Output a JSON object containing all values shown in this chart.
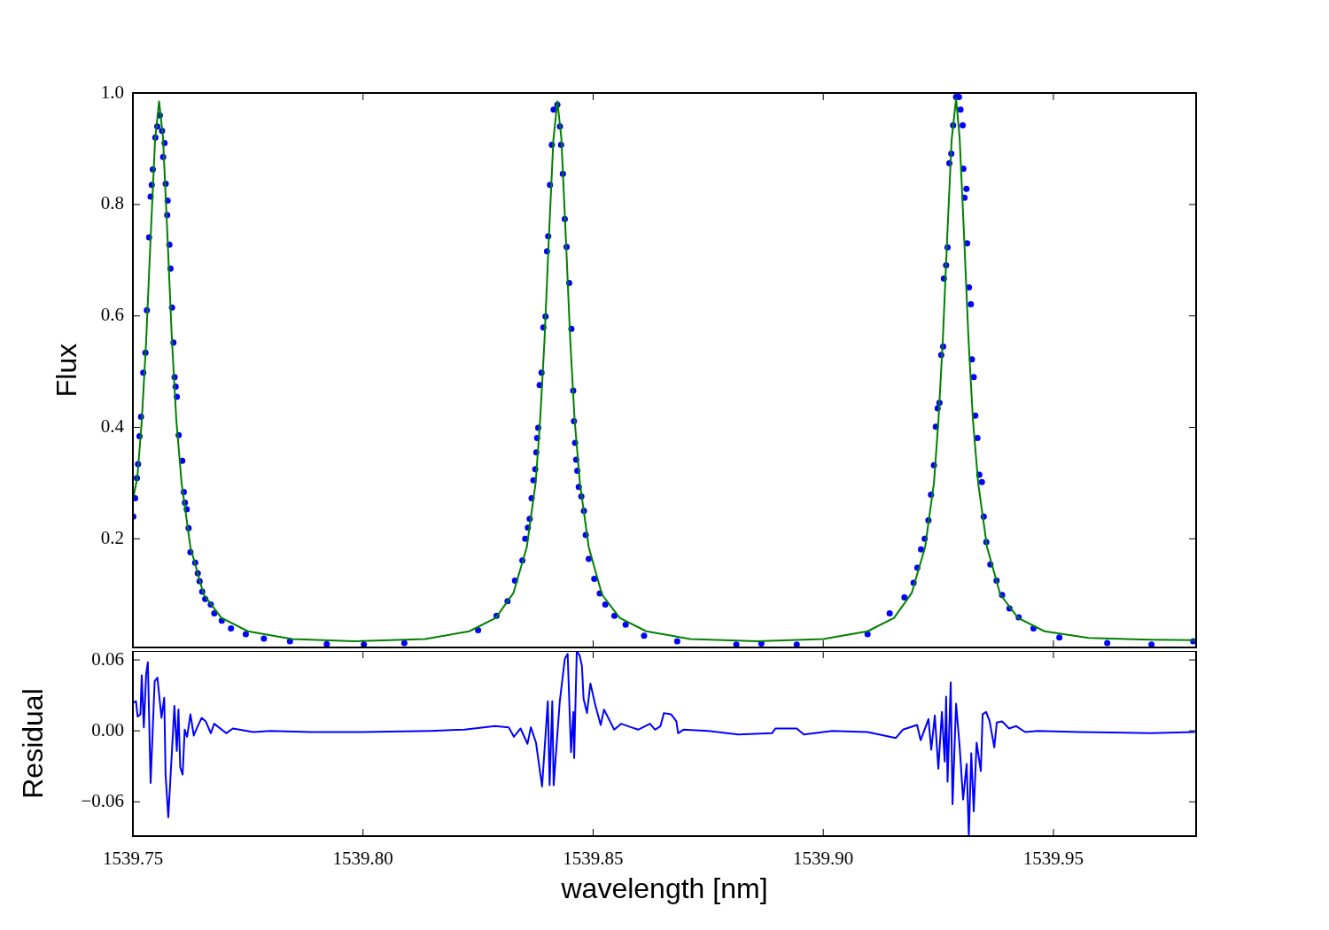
{
  "chart_data": [
    {
      "type": "scatter",
      "ylabel": "Flux",
      "xlim": [
        1539.75,
        1539.981
      ],
      "ylim": [
        0.005,
        1.0
      ],
      "xticks": [
        1539.75,
        1539.8,
        1539.85,
        1539.9,
        1539.95
      ],
      "yticks": [
        0.2,
        0.4,
        0.6,
        0.8,
        {
          "value": 1,
          "label": "1.0"
        }
      ],
      "tick_labels": "y",
      "series": [
        {
          "type": "scatter",
          "color": "#0000ff",
          "marker": "circle",
          "x": [
            1539.75008,
            1539.75048,
            1539.75088,
            1539.75112,
            1539.75144,
            1539.75177,
            1539.75225,
            1539.75273,
            1539.75304,
            1539.75352,
            1539.75385,
            1539.7541,
            1539.75433,
            1539.75488,
            1539.75529,
            1539.75585,
            1539.75633,
            1539.75658,
            1539.75688,
            1539.75713,
            1539.75745,
            1539.75754,
            1539.75793,
            1539.75817,
            1539.7585,
            1539.75881,
            1539.75906,
            1539.75929,
            1539.75954,
            1539.75994,
            1539.76073,
            1539.76106,
            1539.7613,
            1539.76169,
            1539.7621,
            1539.7625,
            1539.76354,
            1539.7641,
            1539.7645,
            1539.76506,
            1539.76571,
            1539.76692,
            1539.76769,
            1539.76931,
            1539.77131,
            1539.77452,
            1539.77846,
            1539.78413,
            1539.79212,
            1539.80019,
            1539.80898,
            1539.825,
            1539.829,
            1539.8314,
            1539.83302,
            1539.83462,
            1539.83525,
            1539.83582,
            1539.83621,
            1539.83662,
            1539.83702,
            1539.83742,
            1539.83765,
            1539.83783,
            1539.83806,
            1539.83838,
            1539.83879,
            1539.83918,
            1539.83966,
            1539.83998,
            1539.84023,
            1539.84063,
            1539.84102,
            1539.84142,
            1539.84223,
            1539.84279,
            1539.84303,
            1539.84342,
            1539.84383,
            1539.84423,
            1539.84479,
            1539.84527,
            1539.84567,
            1539.84583,
            1539.84608,
            1539.84631,
            1539.84656,
            1539.84688,
            1539.84744,
            1539.848,
            1539.8484,
            1539.84904,
            1539.85024,
            1539.85144,
            1539.85264,
            1539.85462,
            1539.85706,
            1539.86106,
            1539.86827,
            1539.8811,
            1539.88654,
            1539.89423,
            1539.90962,
            1539.91442,
            1539.91763,
            1539.91962,
            1539.92043,
            1539.92123,
            1539.92204,
            1539.92284,
            1539.9234,
            1539.92404,
            1539.92444,
            1539.92485,
            1539.92524,
            1539.92563,
            1539.92604,
            1539.9262,
            1539.92668,
            1539.927,
            1539.9274,
            1539.92781,
            1539.92821,
            1539.92885,
            1539.92948,
            1539.92981,
            1539.93029,
            1539.93044,
            1539.93069,
            1539.9311,
            1539.93125,
            1539.93165,
            1539.93206,
            1539.93229,
            1539.93269,
            1539.93302,
            1539.9335,
            1539.93389,
            1539.93446,
            1539.93486,
            1539.93542,
            1539.9363,
            1539.93765,
            1539.93885,
            1539.94046,
            1539.94246,
            1539.94567,
            1539.95129,
            1539.96169,
            1539.97131,
            1539.98038
          ],
          "values": [
            0.24,
            0.273,
            0.309,
            0.334,
            0.384,
            0.419,
            0.498,
            0.534,
            0.61,
            0.741,
            0.814,
            0.835,
            0.863,
            0.92,
            0.94,
            0.96,
            0.932,
            0.885,
            0.91,
            0.837,
            0.781,
            0.807,
            0.728,
            0.685,
            0.615,
            0.552,
            0.49,
            0.473,
            0.455,
            0.386,
            0.34,
            0.284,
            0.265,
            0.253,
            0.219,
            0.176,
            0.157,
            0.138,
            0.124,
            0.105,
            0.092,
            0.082,
            0.066,
            0.053,
            0.039,
            0.029,
            0.021,
            0.016,
            0.011,
            0.01,
            0.013,
            0.036,
            0.062,
            0.088,
            0.125,
            0.161,
            0.2,
            0.22,
            0.236,
            0.273,
            0.305,
            0.325,
            0.355,
            0.381,
            0.399,
            0.476,
            0.498,
            0.579,
            0.599,
            0.716,
            0.743,
            0.835,
            0.907,
            0.97,
            0.979,
            0.94,
            0.907,
            0.855,
            0.774,
            0.724,
            0.659,
            0.577,
            0.466,
            0.411,
            0.372,
            0.342,
            0.322,
            0.293,
            0.276,
            0.25,
            0.207,
            0.164,
            0.128,
            0.102,
            0.082,
            0.062,
            0.046,
            0.026,
            0.016,
            0.01,
            0.012,
            0.01,
            0.029,
            0.066,
            0.095,
            0.121,
            0.148,
            0.181,
            0.2,
            0.233,
            0.279,
            0.332,
            0.401,
            0.434,
            0.444,
            0.53,
            0.545,
            0.667,
            0.691,
            0.723,
            0.874,
            0.891,
            0.942,
            0.993,
            0.993,
            0.97,
            0.942,
            0.864,
            0.812,
            0.828,
            0.73,
            0.651,
            0.621,
            0.522,
            0.49,
            0.421,
            0.381,
            0.315,
            0.302,
            0.24,
            0.194,
            0.154,
            0.125,
            0.099,
            0.075,
            0.059,
            0.039,
            0.023,
            0.013,
            0.01,
            0.016
          ]
        },
        {
          "type": "line",
          "color": "#008000",
          "marker": "none",
          "x": [
            1539.75,
            1539.75096,
            1539.75192,
            1539.75288,
            1539.75385,
            1539.75481,
            1539.75569,
            1539.75654,
            1539.7575,
            1539.75846,
            1539.75942,
            1539.76058,
            1539.7625,
            1539.76538,
            1539.76923,
            1539.775,
            1539.78462,
            1539.79808,
            1539.81346,
            1539.82308,
            1539.82885,
            1539.83269,
            1539.83558,
            1539.8375,
            1539.83846,
            1539.83942,
            1539.84038,
            1539.84135,
            1539.84223,
            1539.84308,
            1539.84404,
            1539.845,
            1539.84596,
            1539.84712,
            1539.84904,
            1539.85192,
            1539.85577,
            1539.86154,
            1539.87115,
            1539.88558,
            1539.9,
            1539.90962,
            1539.91538,
            1539.91923,
            1539.92212,
            1539.92404,
            1539.925,
            1539.92596,
            1539.92692,
            1539.92788,
            1539.92885,
            1539.92962,
            1539.93058,
            1539.93154,
            1539.9325,
            1539.93365,
            1539.93558,
            1539.93846,
            1539.94231,
            1539.94808,
            1539.95769,
            1539.97115,
            1539.981
          ],
          "values": [
            0.27,
            0.31,
            0.41,
            0.555,
            0.74,
            0.915,
            0.985,
            0.92,
            0.745,
            0.56,
            0.415,
            0.3,
            0.185,
            0.1,
            0.058,
            0.034,
            0.02,
            0.016,
            0.02,
            0.034,
            0.058,
            0.103,
            0.185,
            0.3,
            0.41,
            0.555,
            0.74,
            0.915,
            0.985,
            0.92,
            0.745,
            0.56,
            0.415,
            0.3,
            0.185,
            0.1,
            0.058,
            0.034,
            0.02,
            0.016,
            0.02,
            0.034,
            0.058,
            0.103,
            0.185,
            0.3,
            0.41,
            0.555,
            0.74,
            0.915,
            0.99,
            0.92,
            0.745,
            0.56,
            0.415,
            0.3,
            0.185,
            0.1,
            0.058,
            0.034,
            0.022,
            0.019,
            0.018
          ]
        }
      ]
    },
    {
      "type": "line",
      "xlabel": "wavelength [nm]",
      "ylabel": "Residual",
      "xlim": [
        1539.75,
        1539.981
      ],
      "ylim": [
        -0.089,
        0.0675
      ],
      "xticks": [
        1539.75,
        {
          "value": 1539.8,
          "label": "1539.80"
        },
        1539.85,
        {
          "value": 1539.9,
          "label": "1539.90"
        },
        1539.95
      ],
      "yticks": [
        {
          "value": -0.06,
          "label": "−0.06"
        },
        {
          "value": 0,
          "label": "0.00"
        },
        0.06
      ],
      "series": [
        {
          "color": "#0000ff",
          "x": [
            1539.75015,
            1539.75067,
            1539.75104,
            1539.75163,
            1539.75192,
            1539.75237,
            1539.75288,
            1539.75325,
            1539.75385,
            1539.75473,
            1539.75533,
            1539.75621,
            1539.75681,
            1539.7571,
            1539.75769,
            1539.75806,
            1539.75902,
            1539.75954,
            1539.7599,
            1539.76029,
            1539.76081,
            1539.76125,
            1539.76177,
            1539.7625,
            1539.76323,
            1539.76398,
            1539.76494,
            1539.76583,
            1539.76692,
            1539.76767,
            1539.77027,
            1539.77173,
            1539.77615,
            1539.77988,
            1539.78875,
            1539.79981,
            1539.81462,
            1539.82204,
            1539.82869,
            1539.83165,
            1539.83277,
            1539.83423,
            1539.83573,
            1539.83646,
            1539.83758,
            1539.8389,
            1539.84015,
            1539.84054,
            1539.84112,
            1539.84142,
            1539.84275,
            1539.84385,
            1539.84446,
            1539.84519,
            1539.84571,
            1539.84587,
            1539.84644,
            1539.84704,
            1539.84756,
            1539.84792,
            1539.84865,
            1539.8494,
            1539.85052,
            1539.85163,
            1539.85237,
            1539.85458,
            1539.85606,
            1539.85827,
            1539.85977,
            1539.86235,
            1539.86346,
            1539.86462,
            1539.86538,
            1539.86692,
            1539.86808,
            1539.86846,
            1539.86962,
            1539.875,
            1539.88154,
            1539.88885,
            1539.88962,
            1539.89423,
            1539.89577,
            1539.90192,
            1539.90962,
            1539.91577,
            1539.91731,
            1539.92038,
            1539.92115,
            1539.92285,
            1539.92346,
            1539.92423,
            1539.925,
            1539.92577,
            1539.92638,
            1539.92669,
            1539.927,
            1539.92769,
            1539.92808,
            1539.92885,
            1539.92962,
            1539.93038,
            1539.93115,
            1539.93162,
            1539.93215,
            1539.93269,
            1539.93331,
            1539.93423,
            1539.93462,
            1539.93538,
            1539.93615,
            1539.93715,
            1539.93769,
            1539.93885,
            1539.94038,
            1539.94192,
            1539.94385,
            1539.94654,
            1539.95577,
            1539.97115,
            1539.98058
          ],
          "values": [
            0.024,
            0.025,
            0.012,
            0.014,
            0.047,
            0.003,
            0.048,
            0.058,
            -0.044,
            0.042,
            0.045,
            0.011,
            0.028,
            -0.037,
            -0.073,
            -0.047,
            0.021,
            -0.017,
            0.018,
            -0.031,
            -0.037,
            0.001,
            -0.005,
            0.014,
            -0.004,
            0.003,
            0.011,
            0.008,
            -0.002,
            0.006,
            -0.002,
            0.002,
            -0.001,
            0,
            -0.001,
            -0.001,
            0,
            0.001,
            0.004,
            0.003,
            -0.005,
            0.002,
            -0.011,
            0.003,
            -0.01,
            -0.047,
            0.025,
            -0.046,
            0.025,
            -0.046,
            0.025,
            0.061,
            0.065,
            -0.018,
            0.016,
            -0.023,
            0.067,
            0.064,
            0.055,
            0.027,
            0.015,
            0.04,
            0.021,
            0.005,
            0.018,
            0.001,
            0.006,
            0.003,
            0.001,
            0.006,
            0.001,
            0.004,
            0.015,
            0.014,
            0.008,
            -0.002,
            0.001,
            0,
            -0.003,
            -0.002,
            0.002,
            0.002,
            -0.003,
            0,
            -0.001,
            -0.006,
            0.001,
            0.005,
            -0.008,
            0.01,
            -0.016,
            0.013,
            -0.032,
            0.016,
            -0.026,
            0.029,
            -0.043,
            0.041,
            -0.062,
            0.023,
            -0.013,
            -0.058,
            -0.028,
            -0.089,
            -0.019,
            -0.068,
            -0.01,
            -0.034,
            0.014,
            0.016,
            0.008,
            -0.014,
            0.007,
            0.008,
            0.002,
            0.004,
            -0.001,
            0,
            -0.001,
            -0.002,
            -0.001
          ]
        }
      ]
    }
  ]
}
